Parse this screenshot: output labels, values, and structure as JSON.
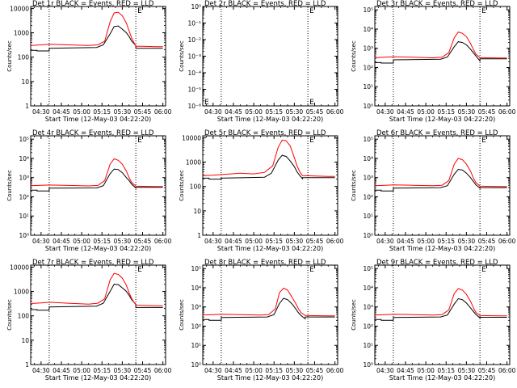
{
  "chart_data": [
    {
      "type": "line",
      "title": "Det 1r BLACK = Events, RED = LLD",
      "xlabel": "Start Time (12-May-03 04:22:20)",
      "ylabel": "Counts/sec",
      "yscale": "log",
      "ylim": [
        1,
        12000
      ],
      "y_tick_labels": [
        "1",
        "10",
        "100",
        "1000",
        "10000"
      ],
      "x_tick_labels": [
        "04:30",
        "04:45",
        "05:00",
        "05:15",
        "05:30",
        "05:45",
        "06:00"
      ],
      "markers": [
        "04:36",
        "05:40"
      ],
      "marker_label": "E",
      "series": [
        {
          "name": "BLACK = Events",
          "color": "#000000",
          "x": [
            "04:22",
            "04:27",
            "04:27",
            "04:36",
            "04:36",
            "05:11",
            "05:16",
            "05:21",
            "05:24",
            "05:27",
            "05:30",
            "05:33",
            "05:35",
            "05:37",
            "05:40",
            "05:40",
            "05:45",
            "05:50",
            "05:55",
            "06:00"
          ],
          "y": [
            190,
            190,
            180,
            180,
            230,
            250,
            320,
            900,
            1800,
            1900,
            1400,
            1000,
            700,
            450,
            300,
            230,
            230,
            230,
            230,
            230
          ]
        },
        {
          "name": "RED = LLD",
          "color": "#ff0000",
          "x": [
            "04:22",
            "04:30",
            "04:36",
            "04:50",
            "05:05",
            "05:12",
            "05:17",
            "05:21",
            "05:24",
            "05:27",
            "05:30",
            "05:33",
            "05:35",
            "05:37",
            "05:40",
            "05:45",
            "05:55",
            "06:00"
          ],
          "y": [
            300,
            320,
            340,
            320,
            300,
            320,
            450,
            2800,
            6500,
            7000,
            5000,
            2500,
            1200,
            600,
            280,
            280,
            270,
            270
          ]
        }
      ]
    },
    {
      "type": "line",
      "title": "Det 2r BLACK = Events, RED = LLD",
      "xlabel": "Start Time (12-May-03 04:22:20)",
      "ylabel": "Counts/sec",
      "yscale": "log",
      "ylim": [
        1e-06,
        1
      ],
      "y_tick_labels": [
        "10⁻⁶",
        "10⁻⁵",
        "10⁻⁴",
        "10⁻³",
        "10⁻²",
        "10⁻¹",
        "10⁰"
      ],
      "x_tick_labels": [
        "04:30",
        "04:45",
        "05:00",
        "05:15",
        "05:30",
        "05:45",
        "06:00"
      ],
      "markers": [
        "04:36",
        "05:40"
      ],
      "marker_label": "E",
      "series": []
    },
    {
      "type": "line",
      "title": "Det 3r BLACK = Events, RED = LLD",
      "xlabel": "Start Time (12-May-03 04:22:20)",
      "ylabel": "Counts/sec",
      "yscale": "log",
      "ylim": [
        1,
        150000
      ],
      "y_tick_labels": [
        "10⁰",
        "10¹",
        "10²",
        "10³",
        "10⁴",
        "10⁵"
      ],
      "x_tick_labels": [
        "04:30",
        "04:45",
        "05:00",
        "05:15",
        "05:30",
        "05:45",
        "06:00"
      ],
      "markers": [
        "04:36",
        "05:40"
      ],
      "marker_label": "E",
      "series": [
        {
          "name": "BLACK = Events",
          "color": "#000000",
          "x": [
            "04:22",
            "04:27",
            "04:27",
            "04:36",
            "04:36",
            "05:11",
            "05:16",
            "05:21",
            "05:24",
            "05:27",
            "05:30",
            "05:33",
            "05:35",
            "05:37",
            "05:40",
            "05:40",
            "05:45",
            "05:50",
            "05:55",
            "06:00"
          ],
          "y": [
            180,
            180,
            170,
            170,
            250,
            270,
            350,
            1200,
            2200,
            2000,
            1500,
            900,
            600,
            400,
            220,
            280,
            280,
            280,
            280,
            280
          ]
        },
        {
          "name": "RED = LLD",
          "color": "#ff0000",
          "x": [
            "04:22",
            "04:30",
            "04:36",
            "04:50",
            "05:05",
            "05:12",
            "05:17",
            "05:21",
            "05:24",
            "05:27",
            "05:30",
            "05:33",
            "05:35",
            "05:37",
            "05:40",
            "05:45",
            "05:55",
            "06:00"
          ],
          "y": [
            320,
            340,
            360,
            340,
            320,
            340,
            600,
            3500,
            7000,
            6000,
            4000,
            1800,
            900,
            500,
            330,
            320,
            310,
            310
          ]
        }
      ]
    },
    {
      "type": "line",
      "title": "Det 4r BLACK = Events, RED = LLD",
      "xlabel": "Start Time (12-May-03 04:22:20)",
      "ylabel": "Counts/sec",
      "yscale": "log",
      "ylim": [
        1,
        150000
      ],
      "y_tick_labels": [
        "10⁰",
        "10¹",
        "10²",
        "10³",
        "10⁴",
        "10⁵"
      ],
      "x_tick_labels": [
        "04:30",
        "04:45",
        "05:00",
        "05:15",
        "05:30",
        "05:45",
        "06:00"
      ],
      "markers": [
        "04:36",
        "05:40"
      ],
      "marker_label": "E",
      "series": [
        {
          "name": "BLACK = Events",
          "color": "#000000",
          "x": [
            "04:22",
            "04:27",
            "04:27",
            "04:36",
            "04:36",
            "05:11",
            "05:16",
            "05:21",
            "05:24",
            "05:27",
            "05:30",
            "05:33",
            "05:35",
            "05:37",
            "05:40",
            "05:40",
            "05:45",
            "05:50",
            "05:55",
            "06:00"
          ],
          "y": [
            220,
            220,
            200,
            200,
            280,
            290,
            380,
            1600,
            2800,
            2600,
            1800,
            1000,
            700,
            450,
            290,
            310,
            310,
            310,
            310,
            310
          ]
        },
        {
          "name": "RED = LLD",
          "color": "#ff0000",
          "x": [
            "04:22",
            "04:30",
            "04:36",
            "04:50",
            "05:05",
            "05:12",
            "05:17",
            "05:21",
            "05:24",
            "05:27",
            "05:30",
            "05:33",
            "05:35",
            "05:37",
            "05:40",
            "05:45",
            "05:55",
            "06:00"
          ],
          "y": [
            380,
            400,
            410,
            390,
            370,
            390,
            700,
            5000,
            9500,
            8000,
            5000,
            2200,
            1000,
            550,
            360,
            350,
            340,
            340
          ]
        }
      ]
    },
    {
      "type": "line",
      "title": "Det 5r BLACK = Events, RED = LLD",
      "xlabel": "Start Time (12-May-03 04:22:20)",
      "ylabel": "Counts/sec",
      "yscale": "log",
      "ylim": [
        1,
        12000
      ],
      "y_tick_labels": [
        "1",
        "10",
        "100",
        "1000",
        "10000"
      ],
      "x_tick_labels": [
        "04:30",
        "04:45",
        "05:00",
        "05:15",
        "05:30",
        "05:45",
        "06:00"
      ],
      "markers": [
        "04:36",
        "05:40"
      ],
      "marker_label": "E",
      "series": [
        {
          "name": "BLACK = Events",
          "color": "#000000",
          "x": [
            "04:22",
            "04:27",
            "04:27",
            "04:36",
            "04:36",
            "05:08",
            "05:13",
            "05:18",
            "05:21",
            "05:24",
            "05:27",
            "05:30",
            "05:32",
            "05:34",
            "05:36",
            "05:36",
            "05:45",
            "05:50",
            "05:55",
            "06:00"
          ],
          "y": [
            220,
            220,
            200,
            200,
            220,
            240,
            350,
            1200,
            1900,
            1700,
            1100,
            650,
            400,
            280,
            210,
            230,
            230,
            230,
            230,
            230
          ]
        },
        {
          "name": "RED = LLD",
          "color": "#ff0000",
          "x": [
            "04:22",
            "04:30",
            "04:40",
            "04:50",
            "05:00",
            "05:08",
            "05:14",
            "05:18",
            "05:21",
            "05:24",
            "05:27",
            "05:30",
            "05:32",
            "05:34",
            "05:36",
            "05:45",
            "05:55",
            "06:00"
          ],
          "y": [
            280,
            290,
            320,
            350,
            330,
            380,
            700,
            4000,
            8000,
            7500,
            4500,
            1500,
            700,
            400,
            280,
            270,
            260,
            260
          ]
        }
      ]
    },
    {
      "type": "line",
      "title": "Det 6r BLACK = Events, RED = LLD",
      "xlabel": "Start Time (12-May-03 04:22:20)",
      "ylabel": "Counts/sec",
      "yscale": "log",
      "ylim": [
        1,
        150000
      ],
      "y_tick_labels": [
        "10⁰",
        "10¹",
        "10²",
        "10³",
        "10⁴",
        "10⁵"
      ],
      "x_tick_labels": [
        "04:30",
        "04:45",
        "05:00",
        "05:15",
        "05:30",
        "05:45",
        "06:00"
      ],
      "markers": [
        "04:36",
        "05:40"
      ],
      "marker_label": "E",
      "series": [
        {
          "name": "BLACK = Events",
          "color": "#000000",
          "x": [
            "04:22",
            "04:27",
            "04:27",
            "04:36",
            "04:36",
            "05:11",
            "05:16",
            "05:21",
            "05:24",
            "05:27",
            "05:30",
            "05:33",
            "05:35",
            "05:37",
            "05:40",
            "05:40",
            "05:45",
            "05:50",
            "05:55",
            "06:00"
          ],
          "y": [
            220,
            220,
            200,
            200,
            280,
            300,
            380,
            1500,
            2700,
            2500,
            1700,
            1000,
            650,
            420,
            280,
            300,
            300,
            300,
            300,
            300
          ]
        },
        {
          "name": "RED = LLD",
          "color": "#ff0000",
          "x": [
            "04:22",
            "04:30",
            "04:36",
            "04:50",
            "05:05",
            "05:12",
            "05:17",
            "05:21",
            "05:24",
            "05:27",
            "05:30",
            "05:33",
            "05:35",
            "05:37",
            "05:40",
            "05:45",
            "05:55",
            "06:00"
          ],
          "y": [
            380,
            400,
            420,
            400,
            380,
            400,
            700,
            5000,
            10000,
            8500,
            5000,
            2200,
            1000,
            550,
            360,
            350,
            340,
            340
          ]
        }
      ]
    },
    {
      "type": "line",
      "title": "Det 7r BLACK = Events, RED = LLD",
      "xlabel": "Start Time (12-May-03 04:22:20)",
      "ylabel": "Counts/sec",
      "yscale": "log",
      "ylim": [
        1,
        12000
      ],
      "y_tick_labels": [
        "1",
        "10",
        "100",
        "1000",
        "10000"
      ],
      "x_tick_labels": [
        "04:30",
        "04:45",
        "05:00",
        "05:15",
        "05:30",
        "05:45",
        "06:00"
      ],
      "markers": [
        "04:36",
        "05:40"
      ],
      "marker_label": "E",
      "series": [
        {
          "name": "BLACK = Events",
          "color": "#000000",
          "x": [
            "04:22",
            "04:27",
            "04:27",
            "04:36",
            "04:36",
            "05:11",
            "05:16",
            "05:21",
            "05:24",
            "05:27",
            "05:30",
            "05:33",
            "05:35",
            "05:37",
            "05:40",
            "05:40",
            "05:45",
            "05:50",
            "05:55",
            "06:00"
          ],
          "y": [
            180,
            180,
            170,
            170,
            230,
            250,
            330,
            1000,
            2000,
            1900,
            1400,
            1000,
            700,
            450,
            300,
            220,
            220,
            220,
            220,
            220
          ]
        },
        {
          "name": "RED = LLD",
          "color": "#ff0000",
          "x": [
            "04:22",
            "04:30",
            "04:36",
            "04:50",
            "05:05",
            "05:12",
            "05:17",
            "05:21",
            "05:24",
            "05:27",
            "05:30",
            "05:33",
            "05:35",
            "05:37",
            "05:40",
            "05:45",
            "05:55",
            "06:00"
          ],
          "y": [
            320,
            340,
            360,
            330,
            300,
            330,
            500,
            3000,
            5500,
            5000,
            3500,
            1800,
            900,
            500,
            280,
            270,
            260,
            260
          ]
        }
      ]
    },
    {
      "type": "line",
      "title": "Det 8r BLACK = Events, RED = LLD",
      "xlabel": "Start Time (12-May-03 04:22:20)",
      "ylabel": "Counts/sec",
      "yscale": "log",
      "ylim": [
        1,
        150000
      ],
      "y_tick_labels": [
        "10⁰",
        "10¹",
        "10²",
        "10³",
        "10⁴",
        "10⁵"
      ],
      "x_tick_labels": [
        "04:30",
        "04:45",
        "05:00",
        "05:15",
        "05:30",
        "05:45",
        "06:00"
      ],
      "markers": [
        "04:36",
        "05:40"
      ],
      "marker_label": "E",
      "series": [
        {
          "name": "BLACK = Events",
          "color": "#000000",
          "x": [
            "04:22",
            "04:27",
            "04:27",
            "04:36",
            "04:36",
            "05:10",
            "05:15",
            "05:19",
            "05:22",
            "05:25",
            "05:28",
            "05:31",
            "05:33",
            "05:35",
            "05:38",
            "05:38",
            "05:45",
            "05:50",
            "05:55",
            "06:00"
          ],
          "y": [
            220,
            220,
            200,
            200,
            280,
            300,
            400,
            1500,
            2800,
            2400,
            1500,
            800,
            500,
            350,
            240,
            300,
            300,
            300,
            300,
            300
          ]
        },
        {
          "name": "RED = LLD",
          "color": "#ff0000",
          "x": [
            "04:22",
            "04:30",
            "04:36",
            "04:50",
            "05:05",
            "05:11",
            "05:16",
            "05:19",
            "05:22",
            "05:25",
            "05:28",
            "05:31",
            "05:33",
            "05:35",
            "05:38",
            "05:45",
            "05:55",
            "06:00"
          ],
          "y": [
            380,
            400,
            420,
            400,
            380,
            400,
            800,
            5500,
            9500,
            7500,
            3500,
            1500,
            800,
            500,
            360,
            350,
            340,
            340
          ]
        }
      ]
    },
    {
      "type": "line",
      "title": "Det 9r BLACK = Events, RED = LLD",
      "xlabel": "Start Time (12-May-03 04:22:20)",
      "ylabel": "Counts/sec",
      "yscale": "log",
      "ylim": [
        1,
        150000
      ],
      "y_tick_labels": [
        "10⁰",
        "10¹",
        "10²",
        "10³",
        "10⁴",
        "10⁵"
      ],
      "x_tick_labels": [
        "04:30",
        "04:45",
        "05:00",
        "05:15",
        "05:30",
        "05:45",
        "06:00"
      ],
      "markers": [
        "04:36",
        "05:40"
      ],
      "marker_label": "E",
      "series": [
        {
          "name": "BLACK = Events",
          "color": "#000000",
          "x": [
            "04:22",
            "04:27",
            "04:27",
            "04:36",
            "04:36",
            "05:11",
            "05:16",
            "05:21",
            "05:24",
            "05:27",
            "05:30",
            "05:33",
            "05:35",
            "05:37",
            "05:40",
            "05:40",
            "05:45",
            "05:50",
            "05:55",
            "06:00"
          ],
          "y": [
            220,
            220,
            200,
            200,
            280,
            300,
            380,
            1400,
            2700,
            2400,
            1600,
            900,
            600,
            400,
            270,
            290,
            290,
            290,
            290,
            290
          ]
        },
        {
          "name": "RED = LLD",
          "color": "#ff0000",
          "x": [
            "04:22",
            "04:30",
            "04:36",
            "04:50",
            "05:05",
            "05:12",
            "05:17",
            "05:21",
            "05:24",
            "05:27",
            "05:30",
            "05:33",
            "05:35",
            "05:37",
            "05:40",
            "05:45",
            "05:55",
            "06:00"
          ],
          "y": [
            380,
            400,
            420,
            400,
            380,
            400,
            700,
            5000,
            9000,
            7500,
            4500,
            2000,
            950,
            520,
            360,
            350,
            340,
            340
          ]
        }
      ]
    }
  ]
}
